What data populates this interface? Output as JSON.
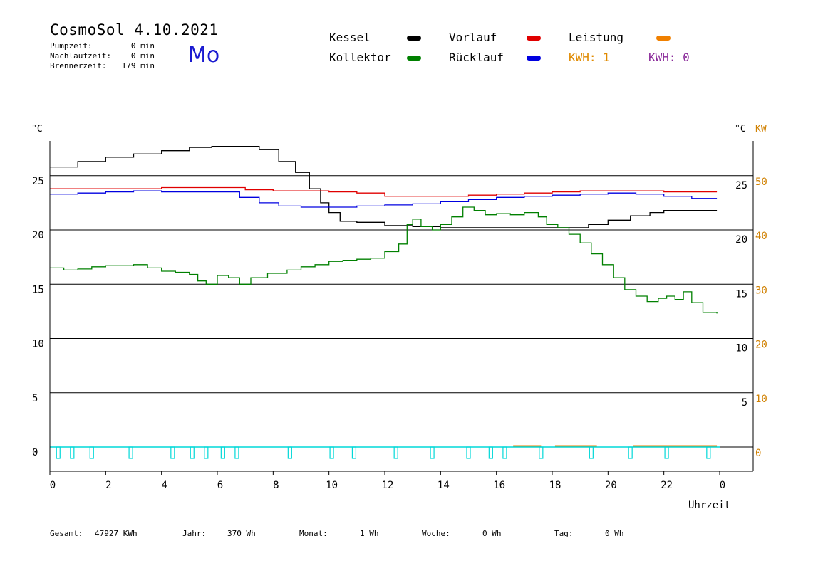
{
  "header": {
    "title": "CosmoSol 4.10.2021",
    "day": "Mo",
    "info": [
      {
        "label": "Pumpzeit:",
        "value": "0 min"
      },
      {
        "label": "Nachlaufzeit:",
        "value": "0 min"
      },
      {
        "label": "Brennerzeit:",
        "value": "179 min"
      }
    ]
  },
  "legend": {
    "kessel": {
      "label": "Kessel",
      "color": "#000000"
    },
    "kollektor": {
      "label": "Kollektor",
      "color": "#008000"
    },
    "vorlauf": {
      "label": "Vorlauf",
      "color": "#e00000"
    },
    "ruecklauf": {
      "label": "Rücklauf",
      "color": "#0000e0"
    },
    "leistung": {
      "label": "Leistung",
      "color": "#f08000"
    },
    "kwh1": "KWH: 1",
    "kwh2": "KWH: 0",
    "kwh1_color": "#e08a00",
    "kwh2_color": "#8a2a9a"
  },
  "footer": {
    "gesamt": {
      "label": "Gesamt:",
      "value": "47927 KWh"
    },
    "jahr": {
      "label": "Jahr:",
      "value": "370 Wh"
    },
    "monat": {
      "label": "Monat:",
      "value": "1 Wh"
    },
    "woche": {
      "label": "Woche:",
      "value": "0 Wh"
    },
    "tag": {
      "label": "Tag:",
      "value": "0 Wh"
    }
  },
  "chart_data": {
    "type": "line",
    "x_unit_label": "Uhrzeit",
    "y_left_unit": "°C",
    "y_right_unit": "°C",
    "y_right2_unit": "KW",
    "xlim": [
      0,
      24
    ],
    "ylim": [
      -2.2,
      28.5
    ],
    "x_tick_labels": [
      "0",
      "2",
      "4",
      "6",
      "8",
      "10",
      "12",
      "14",
      "16",
      "18",
      "20",
      "22",
      "0"
    ],
    "y_left_ticks": [
      0,
      5,
      10,
      15,
      20,
      25
    ],
    "y_right_ticks": [
      5,
      10,
      15,
      20,
      25
    ],
    "y_right_kw_ticks": [
      0,
      10,
      20,
      30,
      40,
      50
    ],
    "grid_horizontal": true,
    "series": [
      {
        "name": "Kessel",
        "color": "#000000",
        "points": [
          [
            0,
            25.8
          ],
          [
            1,
            26.3
          ],
          [
            2,
            26.7
          ],
          [
            3,
            27.0
          ],
          [
            4,
            27.3
          ],
          [
            5,
            27.6
          ],
          [
            5.8,
            27.7
          ],
          [
            6.8,
            27.7
          ],
          [
            7.5,
            27.4
          ],
          [
            8.2,
            26.3
          ],
          [
            8.8,
            25.3
          ],
          [
            9.3,
            23.8
          ],
          [
            9.7,
            22.5
          ],
          [
            10,
            21.6
          ],
          [
            10.4,
            20.8
          ],
          [
            11,
            20.7
          ],
          [
            12,
            20.4
          ],
          [
            13,
            20.3
          ],
          [
            14,
            20.2
          ],
          [
            15,
            20.2
          ],
          [
            16,
            20.2
          ],
          [
            17,
            20.2
          ],
          [
            18,
            20.2
          ],
          [
            18.7,
            20.2
          ],
          [
            19.3,
            20.5
          ],
          [
            20,
            20.9
          ],
          [
            20.8,
            21.3
          ],
          [
            21.5,
            21.6
          ],
          [
            22,
            21.8
          ],
          [
            22.7,
            21.8
          ],
          [
            23.9,
            21.8
          ]
        ]
      },
      {
        "name": "Vorlauf",
        "color": "#e00000",
        "points": [
          [
            0,
            23.8
          ],
          [
            2,
            23.8
          ],
          [
            4,
            23.9
          ],
          [
            5,
            23.9
          ],
          [
            6,
            23.9
          ],
          [
            7,
            23.7
          ],
          [
            8,
            23.6
          ],
          [
            9,
            23.6
          ],
          [
            10,
            23.5
          ],
          [
            11,
            23.4
          ],
          [
            12,
            23.1
          ],
          [
            13,
            23.1
          ],
          [
            14,
            23.1
          ],
          [
            15,
            23.2
          ],
          [
            16,
            23.3
          ],
          [
            17,
            23.4
          ],
          [
            18,
            23.5
          ],
          [
            19,
            23.6
          ],
          [
            20,
            23.6
          ],
          [
            21,
            23.6
          ],
          [
            22,
            23.5
          ],
          [
            23,
            23.5
          ],
          [
            23.9,
            23.5
          ]
        ]
      },
      {
        "name": "Rücklauf",
        "color": "#0000e0",
        "points": [
          [
            0,
            23.3
          ],
          [
            1,
            23.4
          ],
          [
            2,
            23.5
          ],
          [
            3,
            23.6
          ],
          [
            4,
            23.5
          ],
          [
            5,
            23.5
          ],
          [
            6,
            23.5
          ],
          [
            6.8,
            23.0
          ],
          [
            7.5,
            22.5
          ],
          [
            8.2,
            22.2
          ],
          [
            9,
            22.1
          ],
          [
            10,
            22.1
          ],
          [
            11,
            22.2
          ],
          [
            12,
            22.3
          ],
          [
            13,
            22.4
          ],
          [
            14,
            22.6
          ],
          [
            15,
            22.8
          ],
          [
            16,
            23.0
          ],
          [
            17,
            23.1
          ],
          [
            18,
            23.2
          ],
          [
            19,
            23.3
          ],
          [
            20,
            23.4
          ],
          [
            21,
            23.3
          ],
          [
            22,
            23.1
          ],
          [
            23,
            22.9
          ],
          [
            23.9,
            22.9
          ]
        ]
      },
      {
        "name": "Kollektor",
        "color": "#008000",
        "points": [
          [
            0,
            16.5
          ],
          [
            0.5,
            16.3
          ],
          [
            1,
            16.4
          ],
          [
            1.5,
            16.6
          ],
          [
            2,
            16.7
          ],
          [
            2.5,
            16.7
          ],
          [
            3,
            16.8
          ],
          [
            3.5,
            16.5
          ],
          [
            4,
            16.2
          ],
          [
            4.5,
            16.1
          ],
          [
            5,
            15.9
          ],
          [
            5.3,
            15.3
          ],
          [
            5.6,
            15.0
          ],
          [
            6,
            15.8
          ],
          [
            6.4,
            15.6
          ],
          [
            6.8,
            15.0
          ],
          [
            7.2,
            15.6
          ],
          [
            7.8,
            16.0
          ],
          [
            8.5,
            16.3
          ],
          [
            9,
            16.6
          ],
          [
            9.5,
            16.8
          ],
          [
            10,
            17.1
          ],
          [
            10.5,
            17.2
          ],
          [
            11,
            17.3
          ],
          [
            11.5,
            17.4
          ],
          [
            12,
            18.0
          ],
          [
            12.5,
            18.7
          ],
          [
            12.8,
            20.5
          ],
          [
            13,
            21.0
          ],
          [
            13.3,
            20.3
          ],
          [
            13.7,
            20.0
          ],
          [
            14,
            20.5
          ],
          [
            14.4,
            21.2
          ],
          [
            14.8,
            22.1
          ],
          [
            15.2,
            21.8
          ],
          [
            15.6,
            21.4
          ],
          [
            16,
            21.5
          ],
          [
            16.5,
            21.4
          ],
          [
            17,
            21.6
          ],
          [
            17.5,
            21.2
          ],
          [
            17.8,
            20.5
          ],
          [
            18.2,
            20.2
          ],
          [
            18.6,
            19.6
          ],
          [
            19,
            18.8
          ],
          [
            19.4,
            17.8
          ],
          [
            19.8,
            16.8
          ],
          [
            20.2,
            15.6
          ],
          [
            20.6,
            14.5
          ],
          [
            21,
            13.9
          ],
          [
            21.4,
            13.4
          ],
          [
            21.8,
            13.7
          ],
          [
            22.1,
            13.9
          ],
          [
            22.4,
            13.6
          ],
          [
            22.7,
            14.3
          ],
          [
            23,
            13.3
          ],
          [
            23.4,
            12.4
          ],
          [
            23.9,
            12.3
          ]
        ]
      }
    ],
    "pump_markers_x": [
      0.3,
      0.8,
      1.5,
      2.9,
      4.4,
      5.1,
      5.6,
      6.2,
      6.7,
      8.6,
      10.1,
      10.9,
      12.4,
      13.7,
      15.0,
      15.8,
      16.3,
      17.6,
      19.4,
      20.8,
      22.1,
      23.6
    ],
    "leistung_segments": [
      [
        16.6,
        17.6
      ],
      [
        18.1,
        19.6
      ],
      [
        20.9,
        23.9
      ]
    ]
  }
}
